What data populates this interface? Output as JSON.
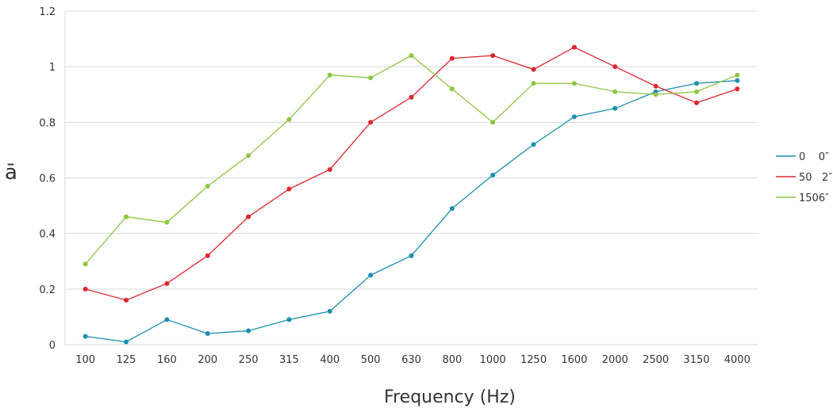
{
  "chart_data": {
    "type": "line",
    "title": "",
    "xlabel": "Frequency (Hz)",
    "ylabel": "ā",
    "ylim": [
      0,
      1.2
    ],
    "yticks": [
      0,
      0.2,
      0.4,
      0.6,
      0.8,
      1,
      1.2
    ],
    "grid": true,
    "legend_position": "right",
    "categories": [
      "100",
      "125",
      "160",
      "200",
      "250",
      "315",
      "400",
      "500",
      "630",
      "800",
      "1000",
      "1250",
      "1600",
      "2000",
      "2500",
      "3150",
      "4000"
    ],
    "series": [
      {
        "name": "0    0″",
        "color": "#1a8fae",
        "values": [
          0.03,
          0.01,
          0.09,
          0.04,
          0.05,
          0.09,
          0.12,
          0.25,
          0.32,
          0.49,
          0.61,
          0.72,
          0.82,
          0.85,
          0.91,
          0.94,
          0.95
        ]
      },
      {
        "name": "50   2″",
        "color": "#e0252e",
        "values": [
          0.2,
          0.16,
          0.22,
          0.32,
          0.46,
          0.56,
          0.63,
          0.8,
          0.89,
          1.03,
          1.04,
          0.99,
          1.07,
          1.0,
          0.93,
          0.87,
          0.92
        ]
      },
      {
        "name": "1506″",
        "color": "#8cc63f",
        "values": [
          0.29,
          0.46,
          0.44,
          0.57,
          0.68,
          0.81,
          0.97,
          0.96,
          1.04,
          0.92,
          0.8,
          0.94,
          0.94,
          0.91,
          0.9,
          0.91,
          0.97
        ]
      }
    ]
  }
}
